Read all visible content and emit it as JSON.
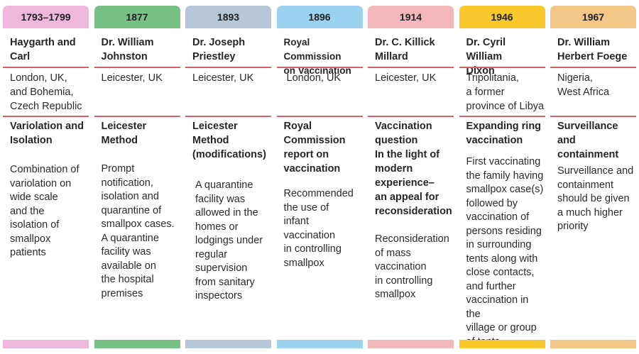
{
  "columns": [
    {
      "year": "1793–1799",
      "color": "#eeb8dc",
      "name": "Haygarth and Carl",
      "location": "London, UK,\nand Bohemia,\nCzech Republic",
      "method": "Variolation and\nIsolation",
      "description": "Combination of\nvariolation on\nwide scale\nand the\nisolation of\nsmallpox patients"
    },
    {
      "year": "1877",
      "color": "#78c184",
      "name": "Dr. William\nJohnston",
      "location": "Leicester, UK",
      "method": "Leicester\nMethod",
      "description": "Prompt\nnotification,\nisolation and\nquarantine of\nsmallpox cases.\nA quarantine\nfacility was\navailable on\nthe hospital\npremises"
    },
    {
      "year": "1893",
      "color": "#b7c7da",
      "name": "Dr. Joseph\nPriestley",
      "location": "Leicester, UK",
      "method": "Leicester\nMethod\n(modifications)",
      "description": "A quarantine\nfacility was\nallowed in the\nhomes or\nlodgings under\nregular\nsupervision\nfrom sanitary\ninspectors"
    },
    {
      "year": "1896",
      "color": "#9ad2ef",
      "name": "Royal Commission\non Vaccination",
      "location": "London, UK",
      "method": "Royal\nCommission\nreport on\nvaccination",
      "description": "Recommended\nthe use of\ninfant\nvaccination\nin controlling\nsmallpox"
    },
    {
      "year": "1914",
      "color": "#f3b7bc",
      "name": "Dr. C. Killick\nMillard",
      "location": "Leicester, UK",
      "method": "Vaccination\nquestion\nIn the light of\nmodern\nexperience–\nan appeal for\nreconsideration",
      "description": "Reconsideration\nof mass\nvaccination\nin controlling\nsmallpox"
    },
    {
      "year": "1946",
      "color": "#f8c92c",
      "name": "Dr. Cyril William\nDixon",
      "location": "Tripolitania,\na former\nprovince of Libya",
      "method": "Expanding ring\nvaccination",
      "description": "First vaccinating\nthe family having\nsmallpox case(s)\nfollowed by\nvaccination of\npersons residing\nin surrounding\ntents along with\nclose contacts,\nand further\nvaccination in the\nvillage or group\nof tents"
    },
    {
      "year": "1967",
      "color": "#f4c788",
      "name": "Dr. William\nHerbert Foege",
      "location": "Nigeria,\nWest Africa",
      "method": "Surveillance and\ncontainment",
      "description": "Surveillance and\ncontainment\nshould be given\na much higher\npriority"
    }
  ]
}
